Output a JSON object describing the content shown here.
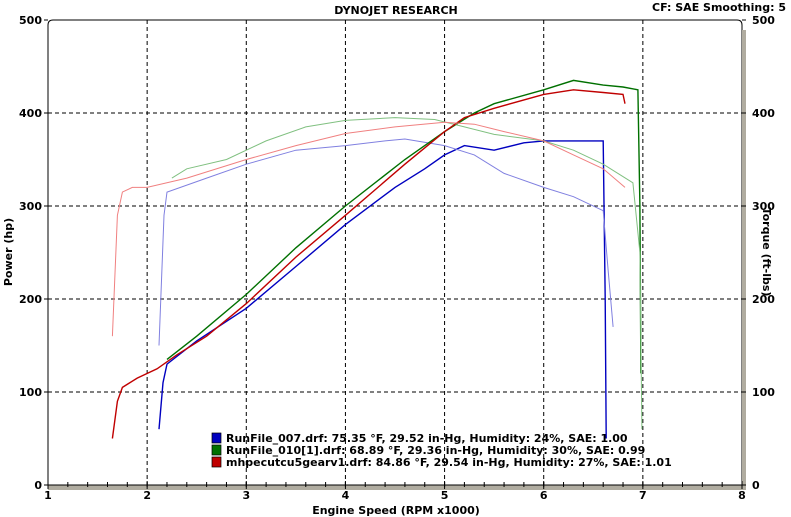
{
  "chart_data": {
    "type": "line",
    "title": "DYNOJET RESEARCH",
    "subtitle": "CF: SAE  Smoothing: 5",
    "xlabel": "Engine Speed (RPM x1000)",
    "ylabel": "Power (hp)",
    "y2label": "Torque (ft-lbs)",
    "xlim": [
      1,
      8
    ],
    "ylim": [
      0,
      500
    ],
    "y2lim": [
      0,
      500
    ],
    "xticks": [
      "1",
      "2",
      "3",
      "4",
      "5",
      "6",
      "7",
      "8"
    ],
    "yticks": [
      "0",
      "100",
      "200",
      "300",
      "400",
      "500"
    ],
    "grid": true,
    "legend_position": "bottom-center",
    "series": [
      {
        "name": "RunFile_007.drf: 75.35 °F, 29.52 in-Hg, Humidity: 24%, SAE: 1.00",
        "measure": "power",
        "color": "#0000c0",
        "x": [
          2.12,
          2.16,
          2.2,
          2.5,
          3,
          3.5,
          4,
          4.5,
          4.8,
          5,
          5.2,
          5.5,
          5.8,
          6,
          6.3,
          6.6,
          6.62,
          6.63
        ],
        "y": [
          60,
          110,
          130,
          155,
          190,
          235,
          280,
          320,
          340,
          355,
          365,
          360,
          368,
          370,
          370,
          370,
          200,
          50
        ]
      },
      {
        "name": "RunFile_007.drf",
        "measure": "torque",
        "color": "#8080e0",
        "x": [
          2.12,
          2.17,
          2.2,
          2.6,
          3,
          3.5,
          4,
          4.4,
          4.6,
          5,
          5.3,
          5.6,
          6,
          6.3,
          6.6,
          6.65,
          6.7
        ],
        "y": [
          150,
          290,
          315,
          330,
          345,
          360,
          365,
          370,
          372,
          365,
          355,
          335,
          320,
          310,
          295,
          230,
          170
        ]
      },
      {
        "name": "RunFile_010[1].drf: 68.89 °F, 29.36 in-Hg, Humidity: 30%, SAE: 0.99",
        "measure": "power",
        "color": "#007000",
        "x": [
          2.2,
          2.5,
          3,
          3.5,
          4,
          4.6,
          5,
          5.3,
          5.5,
          6,
          6.3,
          6.6,
          6.8,
          6.95,
          6.97,
          6.98
        ],
        "y": [
          135,
          160,
          205,
          255,
          300,
          350,
          380,
          400,
          410,
          425,
          435,
          430,
          428,
          425,
          300,
          120
        ]
      },
      {
        "name": "RunFile_010[1].drf",
        "measure": "torque",
        "color": "#80c080",
        "x": [
          2.25,
          2.4,
          2.8,
          3.2,
          3.6,
          4,
          4.5,
          4.9,
          5.2,
          5.5,
          6,
          6.3,
          6.6,
          6.9,
          6.97,
          6.99
        ],
        "y": [
          330,
          340,
          350,
          370,
          385,
          392,
          395,
          393,
          385,
          377,
          370,
          360,
          345,
          325,
          250,
          60
        ]
      },
      {
        "name": "mhpecutcu5gearv1.drf: 84.86 °F, 29.54 in-Hg, Humidity: 27%, SAE: 1.01",
        "measure": "power",
        "color": "#c00000",
        "x": [
          1.65,
          1.7,
          1.75,
          1.9,
          2.1,
          2.3,
          2.6,
          3,
          3.5,
          4,
          4.6,
          5,
          5.2,
          5.5,
          6,
          6.3,
          6.6,
          6.8,
          6.82
        ],
        "y": [
          50,
          90,
          105,
          115,
          125,
          140,
          160,
          195,
          245,
          290,
          345,
          380,
          395,
          405,
          420,
          425,
          422,
          420,
          410
        ]
      },
      {
        "name": "mhpecutcu5gearv1.drf",
        "measure": "torque",
        "color": "#f08080",
        "x": [
          1.65,
          1.7,
          1.75,
          1.85,
          2,
          2.4,
          3,
          3.5,
          4,
          4.5,
          5,
          5.3,
          5.6,
          6,
          6.3,
          6.6,
          6.82
        ],
        "y": [
          160,
          290,
          315,
          320,
          320,
          330,
          350,
          365,
          378,
          385,
          390,
          388,
          380,
          370,
          355,
          340,
          320
        ]
      }
    ]
  }
}
